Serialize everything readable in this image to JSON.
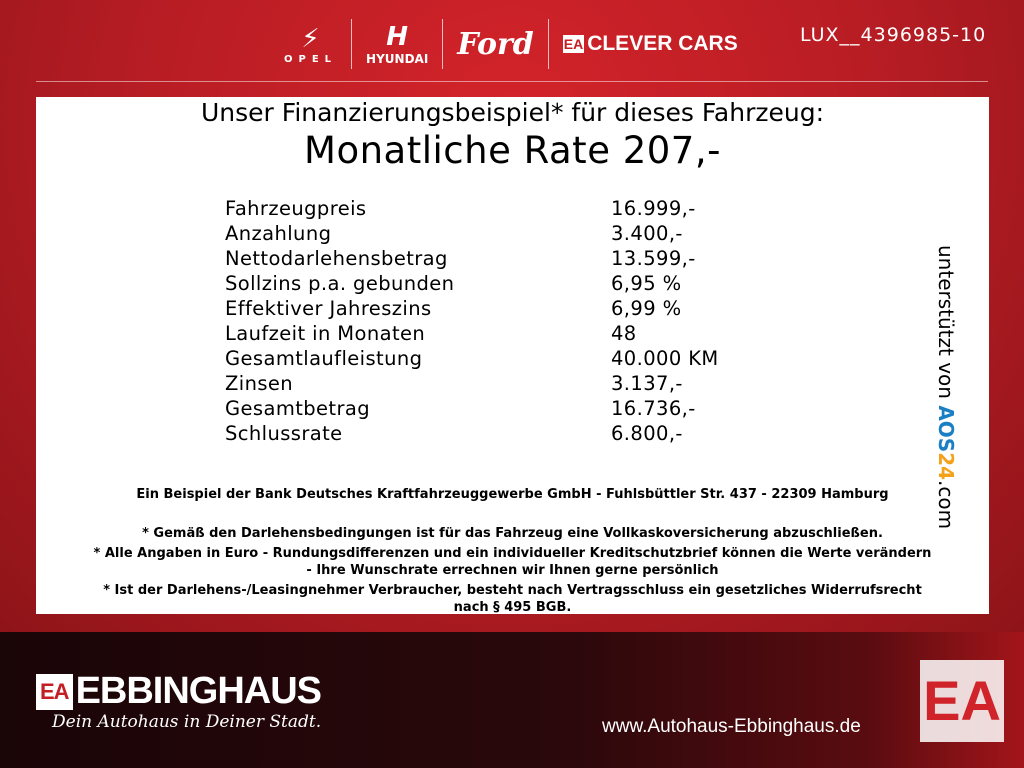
{
  "header": {
    "brands": [
      "OPEL",
      "HYUNDAI",
      "Ford",
      "CLEVER CARS"
    ],
    "clever_prefix": "EA",
    "reference": "LUX__4396985-10"
  },
  "main": {
    "title": "Unser Finanzierungsbeispiel* für dieses Fahrzeug:",
    "rate": "Monatliche Rate 207,-",
    "rows": [
      {
        "label": "Fahrzeugpreis",
        "value": "16.999,-"
      },
      {
        "label": "Anzahlung",
        "value": "3.400,-"
      },
      {
        "label": "Nettodarlehensbetrag",
        "value": "13.599,-"
      },
      {
        "label": "Sollzins p.a. gebunden",
        "value": "6,95 %"
      },
      {
        "label": "Effektiver Jahreszins",
        "value": "6,99 %"
      },
      {
        "label": "Laufzeit in Monaten",
        "value": "48"
      },
      {
        "label": "Gesamtlaufleistung",
        "value": "40.000 KM"
      },
      {
        "label": "Zinsen",
        "value": "3.137,-"
      },
      {
        "label": "Gesamtbetrag",
        "value": "16.736,-"
      },
      {
        "label": "Schlussrate",
        "value": "6.800,-"
      }
    ],
    "bank": "Ein Beispiel der Bank Deutsches Kraftfahrzeuggewerbe GmbH - Fuhlsbüttler Str. 437 - 22309 Hamburg",
    "notes": [
      "* Gemäß den Darlehensbedingungen ist für das Fahrzeug eine Vollkaskoversicherung abzuschließen.",
      "* Alle Angaben in Euro - Rundungsdifferenzen und ein individueller Kreditschutzbrief können die Werte verändern",
      "- Ihre Wunschrate errechnen wir Ihnen gerne persönlich",
      "* Ist der Darlehens-/Leasingnehmer Verbraucher, besteht nach Vertragsschluss ein gesetzliches Widerrufsrecht",
      "nach § 495 BGB."
    ],
    "supported_by": "unterstützt von",
    "aos_a": "AOS",
    "aos_b": "24",
    "aos_c": ".com"
  },
  "footer": {
    "logo_prefix": "EA",
    "logo": "EBBINGHAUS",
    "slogan": "Dein Autohaus in Deiner Stadt.",
    "url": "www.Autohaus-Ebbinghaus.de",
    "emblem": "EA"
  }
}
